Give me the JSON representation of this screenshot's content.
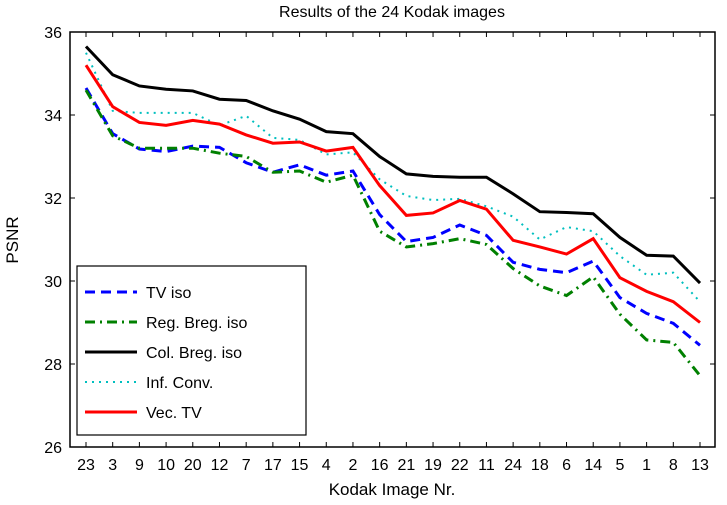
{
  "chart_data": {
    "type": "line",
    "title": "Results of the 24 Kodak images",
    "xlabel": "Kodak Image Nr.",
    "ylabel": "PSNR",
    "ylim": [
      26,
      36
    ],
    "yticks": [
      26,
      28,
      30,
      32,
      34,
      36
    ],
    "grid": false,
    "legend_position": "bottom-left",
    "categories": [
      "23",
      "3",
      "9",
      "10",
      "20",
      "12",
      "7",
      "17",
      "15",
      "4",
      "2",
      "16",
      "21",
      "19",
      "22",
      "11",
      "24",
      "18",
      "6",
      "14",
      "5",
      "1",
      "8",
      "13"
    ],
    "series": [
      {
        "name": "TV iso",
        "color": "#0000ff",
        "style": "dashed",
        "values": [
          34.65,
          33.55,
          33.18,
          33.12,
          33.25,
          33.22,
          32.85,
          32.62,
          32.8,
          32.55,
          32.65,
          31.6,
          30.95,
          31.05,
          31.35,
          31.1,
          30.45,
          30.28,
          30.2,
          30.48,
          29.6,
          29.22,
          28.98,
          28.45
        ]
      },
      {
        "name": "Reg. Breg. iso",
        "color": "#008000",
        "style": "dashdot",
        "values": [
          34.6,
          33.5,
          33.2,
          33.2,
          33.2,
          33.08,
          33.0,
          32.62,
          32.65,
          32.38,
          32.55,
          31.2,
          30.82,
          30.9,
          31.02,
          30.88,
          30.3,
          29.88,
          29.65,
          30.1,
          29.2,
          28.58,
          28.52,
          27.72
        ]
      },
      {
        "name": "Col. Breg. iso",
        "color": "#000000",
        "style": "solid",
        "values": [
          35.65,
          34.97,
          34.7,
          34.62,
          34.58,
          34.38,
          34.35,
          34.1,
          33.9,
          33.6,
          33.55,
          33.0,
          32.58,
          32.52,
          32.5,
          32.5,
          32.1,
          31.67,
          31.65,
          31.62,
          31.05,
          30.62,
          30.6,
          29.95
        ]
      },
      {
        "name": "Inf. Conv.",
        "color": "#00bfbf",
        "style": "dotted",
        "values": [
          35.5,
          34.1,
          34.05,
          34.05,
          34.05,
          33.75,
          33.98,
          33.45,
          33.4,
          33.05,
          33.1,
          32.45,
          32.05,
          31.95,
          31.98,
          31.8,
          31.55,
          31.0,
          31.3,
          31.2,
          30.6,
          30.15,
          30.2,
          29.5
        ]
      },
      {
        "name": "Vec. TV",
        "color": "#ff0000",
        "style": "solid",
        "values": [
          35.2,
          34.2,
          33.82,
          33.75,
          33.87,
          33.78,
          33.52,
          33.32,
          33.35,
          33.13,
          33.22,
          32.3,
          31.58,
          31.64,
          31.94,
          31.73,
          30.98,
          30.82,
          30.65,
          31.02,
          30.08,
          29.75,
          29.5,
          29.0
        ]
      }
    ]
  }
}
